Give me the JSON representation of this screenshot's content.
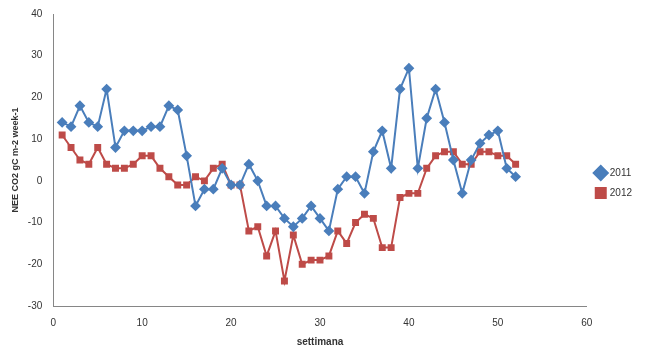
{
  "chart_data": {
    "type": "line",
    "x_label": "settimana",
    "y_label": "NEE CO2 gC m-2 week-1",
    "x": [
      1,
      2,
      3,
      4,
      5,
      6,
      7,
      8,
      9,
      10,
      11,
      12,
      13,
      14,
      15,
      16,
      17,
      18,
      19,
      20,
      21,
      22,
      23,
      24,
      25,
      26,
      27,
      28,
      29,
      30,
      31,
      32,
      33,
      34,
      35,
      36,
      37,
      38,
      39,
      40,
      41,
      42,
      43,
      44,
      45,
      46,
      47,
      48,
      49,
      50,
      51,
      52
    ],
    "series": [
      {
        "name": "2011",
        "color": "#4a7ebb",
        "marker": "diamond",
        "line_style": "solid",
        "values": [
          14,
          13,
          18,
          14,
          13,
          22,
          8,
          12,
          12,
          12,
          13,
          13,
          18,
          17,
          6,
          -6,
          -2,
          -2,
          3,
          -1,
          -1,
          4,
          0,
          -6,
          -6,
          -9,
          -11,
          -9,
          -6,
          -9,
          -12,
          -2,
          1,
          1,
          -3,
          7,
          12,
          3,
          22,
          27,
          3,
          15,
          22,
          14,
          5,
          -3,
          5,
          9,
          11,
          12,
          3,
          1
        ]
      },
      {
        "name": "2012",
        "color": "#be4b48",
        "marker": "square",
        "line_style": "solid",
        "values": [
          11,
          8,
          5,
          4,
          8,
          4,
          3,
          3,
          4,
          6,
          6,
          3,
          1,
          -1,
          -1,
          1,
          0,
          3,
          4,
          -1,
          -1,
          -12,
          -11,
          -18,
          -12,
          -24,
          -13,
          -20,
          -19,
          -19,
          -18,
          -12,
          -15,
          -10,
          -8,
          -9,
          -16,
          -16,
          -4,
          -3,
          -3,
          3,
          6,
          7,
          7,
          4,
          4,
          7,
          7,
          6,
          6,
          4
        ]
      }
    ],
    "xlim": [
      0,
      60
    ],
    "xticks": [
      0,
      10,
      20,
      30,
      40,
      50,
      60
    ],
    "ylim": [
      -30,
      40
    ],
    "yticks": [
      -30,
      -20,
      -10,
      0,
      10,
      20,
      30,
      40
    ],
    "grid": false,
    "legend": "right"
  }
}
